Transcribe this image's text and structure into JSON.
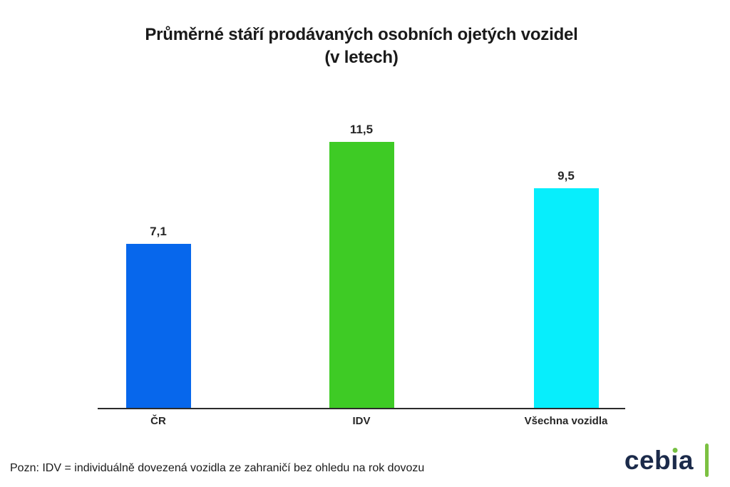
{
  "title_line1": "Průměrné stáří prodávaných osobních ojetých vozidel",
  "title_line2": "(v letech)",
  "note": "Pozn: IDV = individuálně dovezená vozidla ze zahraničí bez ohledu na rok dovozu",
  "logo": {
    "full": "cebia",
    "part1": "ceb",
    "part2": "ı",
    "part3": "a",
    "text_color": "#1b2a4a",
    "accent_color": "#76c043"
  },
  "chart_data": {
    "type": "bar",
    "title": "Průměrné stáří prodávaných osobních ojetých vozidel (v letech)",
    "xlabel": "",
    "ylabel": "",
    "categories": [
      "ČR",
      "IDV",
      "Všechna vozidla"
    ],
    "values": [
      7.1,
      11.5,
      9.5
    ],
    "value_labels": [
      "7,1",
      "11,5",
      "9,5"
    ],
    "colors": [
      "#0767ec",
      "#3ecb25",
      "#07eefc"
    ],
    "ylim": [
      0,
      12.7
    ],
    "grid": false,
    "legend": false,
    "axis_color": "#2b2b2b"
  }
}
